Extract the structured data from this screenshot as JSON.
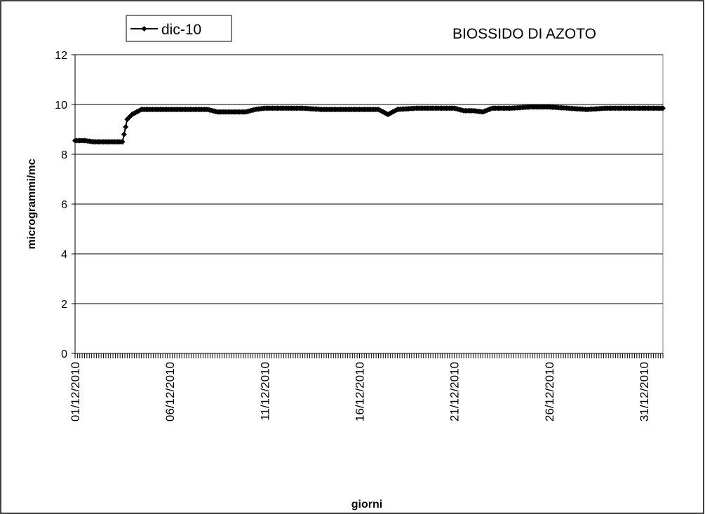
{
  "chart_data": {
    "type": "line",
    "title": "BIOSSIDO DI AZOTO",
    "xlabel": "giorni",
    "ylabel": "microgrammi/mc",
    "ylim": [
      0,
      12
    ],
    "yticks": [
      0,
      2,
      4,
      6,
      8,
      10,
      12
    ],
    "xlim": [
      "01/12/2010",
      "01/01/2011"
    ],
    "xtick_labels": [
      "01/12/2010",
      "06/12/2010",
      "11/12/2010",
      "16/12/2010",
      "21/12/2010",
      "26/12/2010",
      "31/12/2010"
    ],
    "grid": "horizontal",
    "legend": "top-left",
    "series": [
      {
        "name": "dic-10",
        "color": "#000000",
        "marker": "diamond",
        "points": [
          [
            "01/12/2010",
            8.55
          ],
          [
            "01/12/2010 12:00",
            8.55
          ],
          [
            "02/12/2010",
            8.5
          ],
          [
            "02/12/2010 12:00",
            8.5
          ],
          [
            "03/12/2010",
            8.5
          ],
          [
            "03/12/2010 12:00",
            8.5
          ],
          [
            "03/12/2010 18:00",
            9.4
          ],
          [
            "04/12/2010",
            9.6
          ],
          [
            "04/12/2010 12:00",
            9.8
          ],
          [
            "05/12/2010",
            9.8
          ],
          [
            "06/12/2010",
            9.8
          ],
          [
            "07/12/2010",
            9.8
          ],
          [
            "08/12/2010",
            9.8
          ],
          [
            "08/12/2010 12:00",
            9.7
          ],
          [
            "09/12/2010",
            9.7
          ],
          [
            "10/12/2010",
            9.7
          ],
          [
            "10/12/2010 12:00",
            9.8
          ],
          [
            "11/12/2010",
            9.85
          ],
          [
            "12/12/2010",
            9.85
          ],
          [
            "13/12/2010",
            9.85
          ],
          [
            "14/12/2010",
            9.8
          ],
          [
            "15/12/2010",
            9.8
          ],
          [
            "16/12/2010",
            9.8
          ],
          [
            "17/12/2010",
            9.8
          ],
          [
            "17/12/2010 12:00",
            9.6
          ],
          [
            "18/12/2010",
            9.8
          ],
          [
            "19/12/2010",
            9.85
          ],
          [
            "20/12/2010",
            9.85
          ],
          [
            "21/12/2010",
            9.85
          ],
          [
            "21/12/2010 12:00",
            9.75
          ],
          [
            "22/12/2010",
            9.75
          ],
          [
            "22/12/2010 12:00",
            9.7
          ],
          [
            "23/12/2010",
            9.85
          ],
          [
            "24/12/2010",
            9.85
          ],
          [
            "25/12/2010",
            9.9
          ],
          [
            "26/12/2010",
            9.9
          ],
          [
            "27/12/2010",
            9.85
          ],
          [
            "28/12/2010",
            9.8
          ],
          [
            "29/12/2010",
            9.85
          ],
          [
            "30/12/2010",
            9.85
          ],
          [
            "31/12/2010",
            9.85
          ],
          [
            "01/01/2011",
            9.85
          ]
        ]
      }
    ]
  }
}
